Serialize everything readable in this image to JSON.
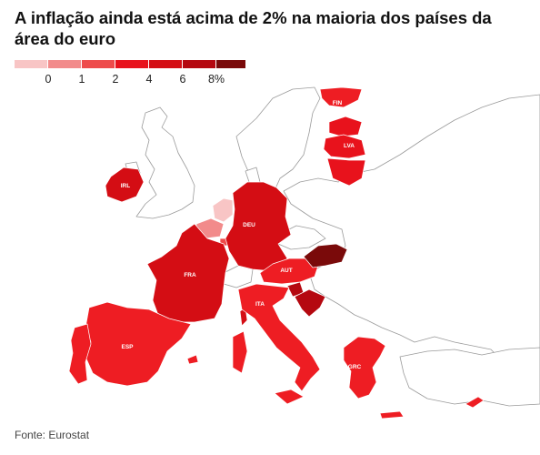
{
  "title": "A inflação ainda está acima de 2% na maioria dos países da área do euro",
  "legend": {
    "colors": [
      "#f8c5c5",
      "#f28b8b",
      "#ee4b4b",
      "#e8121c",
      "#d40d14",
      "#b50810",
      "#7a0a0a"
    ],
    "labels": [
      "0",
      "1",
      "2",
      "4",
      "6",
      "8%"
    ]
  },
  "countries": [
    {
      "code": "FIN",
      "color": "#ee1d23"
    },
    {
      "code": "LVA",
      "color": "#e8121c"
    },
    {
      "code": "IRL",
      "color": "#d40d14"
    },
    {
      "code": "DEU",
      "color": "#d40d14"
    },
    {
      "code": "FRA",
      "color": "#d40d14"
    },
    {
      "code": "AUT",
      "color": "#ee1d23"
    },
    {
      "code": "ITA",
      "color": "#ee1d23"
    },
    {
      "code": "ESP",
      "color": "#ee1d23"
    },
    {
      "code": "GRC",
      "color": "#ee1d23"
    }
  ],
  "source": "Fonte: Eurostat"
}
